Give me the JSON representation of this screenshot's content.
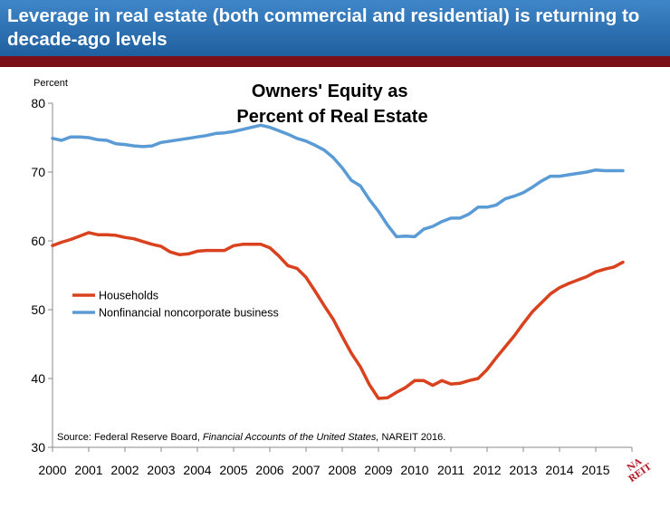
{
  "header": {
    "title": "Leverage in real estate (both commercial and residential) is returning to decade-ago levels"
  },
  "logo": {
    "text": "NAREIT"
  },
  "colors": {
    "header_bg": "#2f74b5",
    "header_rule": "#7b0f17",
    "households": "#d9421e",
    "nonfinancial": "#5b9bd5"
  },
  "chart_data": {
    "type": "line",
    "title": "Owners' Equity as\nPercent of Real Estate",
    "ylabel": "Percent",
    "ylim": [
      30,
      80
    ],
    "yticks": [
      30,
      40,
      50,
      60,
      70,
      80
    ],
    "xlim": [
      2000,
      2016
    ],
    "xticks": [
      "2000",
      "2001",
      "2002",
      "2003",
      "2004",
      "2005",
      "2006",
      "2007",
      "2008",
      "2009",
      "2010",
      "2011",
      "2012",
      "2013",
      "2014",
      "2015"
    ],
    "legend_position": "left-middle",
    "source": "Source: Federal Reserve Board, ",
    "source_italic": "Financial Accounts of the United States,",
    "source_end": " NAREIT 2016.",
    "series": [
      {
        "name": "Households",
        "color": "#d9421e",
        "x": [
          2000,
          2000.25,
          2000.5,
          2000.75,
          2001,
          2001.25,
          2001.5,
          2001.75,
          2002,
          2002.25,
          2002.5,
          2002.75,
          2003,
          2003.25,
          2003.5,
          2003.75,
          2004,
          2004.25,
          2004.5,
          2004.75,
          2005,
          2005.25,
          2005.5,
          2005.75,
          2006,
          2006.25,
          2006.5,
          2006.75,
          2007,
          2007.25,
          2007.5,
          2007.75,
          2008,
          2008.25,
          2008.5,
          2008.75,
          2009,
          2009.25,
          2009.5,
          2009.75,
          2010,
          2010.25,
          2010.5,
          2010.75,
          2011,
          2011.25,
          2011.5,
          2011.75,
          2012,
          2012.25,
          2012.5,
          2012.75,
          2013,
          2013.25,
          2013.5,
          2013.75,
          2014,
          2014.25,
          2014.5,
          2014.75,
          2015,
          2015.25,
          2015.5,
          2015.75
        ],
        "values": [
          59.3,
          59.8,
          60.2,
          60.7,
          61.2,
          60.9,
          60.9,
          60.8,
          60.5,
          60.3,
          59.9,
          59.5,
          59.2,
          58.4,
          58.0,
          58.1,
          58.5,
          58.6,
          58.6,
          58.6,
          59.3,
          59.5,
          59.5,
          59.5,
          59.0,
          57.8,
          56.4,
          56.0,
          54.7,
          52.7,
          50.6,
          48.6,
          46.1,
          43.7,
          41.7,
          39.1,
          37.1,
          37.2,
          38.0,
          38.7,
          39.7,
          39.7,
          39.0,
          39.7,
          39.2,
          39.3,
          39.7,
          40.0,
          41.3,
          43.0,
          44.6,
          46.2,
          48.0,
          49.7,
          51.0,
          52.3,
          53.2,
          53.8,
          54.3,
          54.8,
          55.5,
          55.9,
          56.2,
          56.9
        ]
      },
      {
        "name": "Nonfinancial noncorporate business",
        "color": "#5b9bd5",
        "x": [
          2000,
          2000.25,
          2000.5,
          2000.75,
          2001,
          2001.25,
          2001.5,
          2001.75,
          2002,
          2002.25,
          2002.5,
          2002.75,
          2003,
          2003.25,
          2003.5,
          2003.75,
          2004,
          2004.25,
          2004.5,
          2004.75,
          2005,
          2005.25,
          2005.5,
          2005.75,
          2006,
          2006.25,
          2006.5,
          2006.75,
          2007,
          2007.25,
          2007.5,
          2007.75,
          2008,
          2008.25,
          2008.5,
          2008.75,
          2009,
          2009.25,
          2009.5,
          2009.75,
          2010,
          2010.25,
          2010.5,
          2010.75,
          2011,
          2011.25,
          2011.5,
          2011.75,
          2012,
          2012.25,
          2012.5,
          2012.75,
          2013,
          2013.25,
          2013.5,
          2013.75,
          2014,
          2014.25,
          2014.5,
          2014.75,
          2015,
          2015.25,
          2015.5,
          2015.75
        ],
        "values": [
          74.9,
          74.6,
          75.1,
          75.1,
          75.0,
          74.7,
          74.6,
          74.1,
          74.0,
          73.8,
          73.7,
          73.8,
          74.3,
          74.5,
          74.7,
          74.9,
          75.1,
          75.3,
          75.6,
          75.7,
          75.9,
          76.2,
          76.5,
          76.8,
          76.5,
          76.0,
          75.5,
          74.9,
          74.5,
          73.9,
          73.2,
          72.1,
          70.6,
          68.8,
          68.0,
          66.0,
          64.3,
          62.3,
          60.6,
          60.7,
          60.6,
          61.7,
          62.1,
          62.8,
          63.3,
          63.3,
          63.9,
          64.9,
          64.9,
          65.2,
          66.1,
          66.5,
          67.0,
          67.8,
          68.7,
          69.4,
          69.4,
          69.6,
          69.8,
          70.0,
          70.3,
          70.2,
          70.2,
          70.2
        ]
      }
    ]
  }
}
